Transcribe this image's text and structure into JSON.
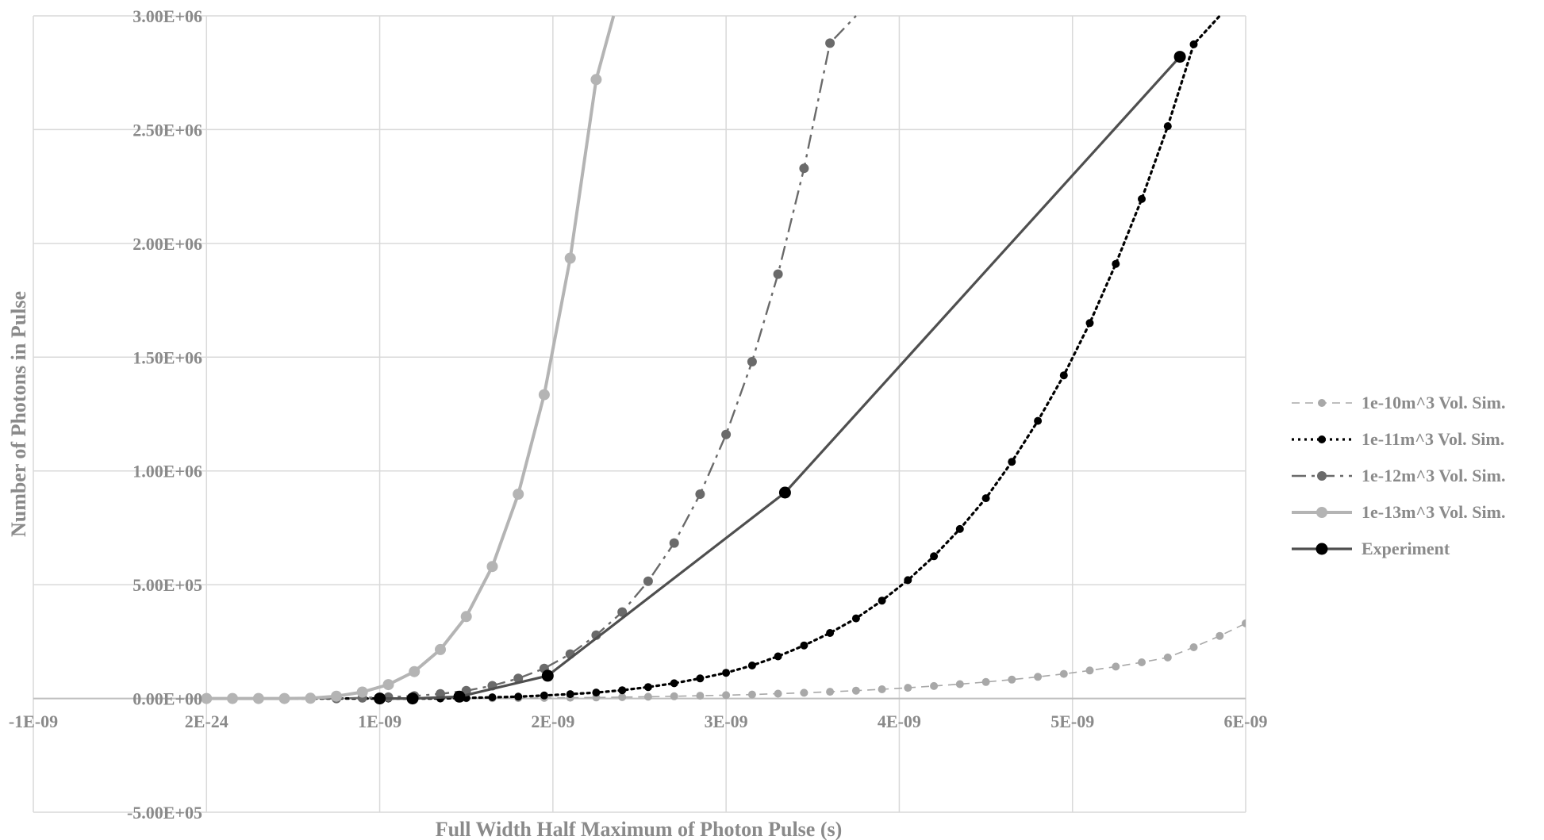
{
  "chart_data": {
    "type": "line",
    "title": "",
    "xlabel": "Full Width Half Maximum of Photon Pulse (s)",
    "ylabel": "Number of Photons in Pulse",
    "xlim": [
      -1e-09,
      6e-09
    ],
    "ylim": [
      -500000,
      3000000
    ],
    "x_ticks": [
      -1e-09,
      0,
      1e-09,
      2e-09,
      3e-09,
      4e-09,
      5e-09,
      6e-09
    ],
    "x_tick_labels": [
      "-1E-09",
      "2E-24",
      "1E-09",
      "2E-09",
      "3E-09",
      "4E-09",
      "5E-09",
      "6E-09"
    ],
    "y_ticks": [
      -500000,
      0,
      500000,
      1000000,
      1500000,
      2000000,
      2500000,
      3000000
    ],
    "y_tick_labels": [
      "-5.00E+05",
      "0.00E+00",
      "5.00E+05",
      "1.00E+06",
      "1.50E+06",
      "2.00E+06",
      "2.50E+06",
      "3.00E+06"
    ],
    "grid": true,
    "legend_position": "right",
    "series": [
      {
        "name": "1e-10m^3 Vol. Sim.",
        "color": "#a8a8a8",
        "dash": "10,7",
        "stroke_width": 1.6,
        "marker_radius": 5,
        "x": [
          0,
          1.5e-10,
          3e-10,
          4.5e-10,
          6e-10,
          7.5e-10,
          9e-10,
          1.05e-09,
          1.2e-09,
          1.35e-09,
          1.5e-09,
          1.65e-09,
          1.8e-09,
          1.95e-09,
          2.1e-09,
          2.25e-09,
          2.4e-09,
          2.55e-09,
          2.7e-09,
          2.85e-09,
          3e-09,
          3.15e-09,
          3.3e-09,
          3.45e-09,
          3.6e-09,
          3.75e-09,
          3.9e-09,
          4.05e-09,
          4.2e-09,
          4.35e-09,
          4.5e-09,
          4.65e-09,
          4.8e-09,
          4.95e-09,
          5.1e-09,
          5.25e-09,
          5.4e-09,
          5.55e-09,
          5.7e-09,
          5.85e-09,
          6e-09
        ],
        "y": [
          0,
          0,
          0,
          0,
          0,
          0,
          0,
          0,
          0,
          500,
          800,
          1200,
          1800,
          2500,
          3500,
          4500,
          6000,
          7500,
          9500,
          12000,
          14500,
          17500,
          21000,
          25000,
          29500,
          34500,
          40500,
          47000,
          54500,
          63000,
          72500,
          83000,
          95000,
          108000,
          123000,
          140000,
          159000,
          180000,
          225000,
          275000,
          330000
        ]
      },
      {
        "name": "1e-11m^3 Vol. Sim.",
        "color": "#000000",
        "dash": "3,5",
        "stroke_width": 3.2,
        "marker_radius": 5,
        "x": [
          0,
          1.5e-10,
          3e-10,
          4.5e-10,
          6e-10,
          7.5e-10,
          9e-10,
          1.05e-09,
          1.2e-09,
          1.35e-09,
          1.5e-09,
          1.65e-09,
          1.8e-09,
          1.95e-09,
          2.1e-09,
          2.25e-09,
          2.4e-09,
          2.55e-09,
          2.7e-09,
          2.85e-09,
          3e-09,
          3.15e-09,
          3.3e-09,
          3.45e-09,
          3.6e-09,
          3.75e-09,
          3.9e-09,
          4.05e-09,
          4.2e-09,
          4.35e-09,
          4.5e-09,
          4.65e-09,
          4.8e-09,
          4.95e-09,
          5.1e-09,
          5.25e-09,
          5.4e-09,
          5.55e-09,
          5.7e-09,
          5.85e-09
        ],
        "y": [
          0,
          0,
          0,
          0,
          0,
          0,
          0,
          0,
          0,
          0,
          2500,
          5000,
          8000,
          13000,
          19000,
          26000,
          36000,
          50000,
          67000,
          88000,
          113000,
          145000,
          185000,
          233000,
          288000,
          352000,
          430000,
          520000,
          625000,
          745000,
          880000,
          1040000,
          1220000,
          1420000,
          1650000,
          1910000,
          2195000,
          2515000,
          2875000,
          3000000
        ]
      },
      {
        "name": "1e-12m^3 Vol. Sim.",
        "color": "#6a6a6a",
        "dash": "18,7,4,7",
        "stroke_width": 2.4,
        "marker_radius": 6,
        "x": [
          0,
          1.5e-10,
          3e-10,
          4.5e-10,
          6e-10,
          7.5e-10,
          9e-10,
          1.05e-09,
          1.2e-09,
          1.35e-09,
          1.5e-09,
          1.65e-09,
          1.8e-09,
          1.95e-09,
          2.1e-09,
          2.25e-09,
          2.4e-09,
          2.55e-09,
          2.7e-09,
          2.85e-09,
          3e-09,
          3.15e-09,
          3.3e-09,
          3.45e-09,
          3.6e-09,
          3.75e-09
        ],
        "y": [
          0,
          0,
          0,
          0,
          0,
          0,
          3000,
          6000,
          11000,
          20000,
          34000,
          56000,
          88000,
          132000,
          195000,
          278000,
          380000,
          515000,
          683000,
          898000,
          1160000,
          1480000,
          1865000,
          2330000,
          2880000,
          3000000
        ]
      },
      {
        "name": "1e-13m^3 Vol. Sim.",
        "color": "#b4b4b4",
        "dash": "",
        "stroke_width": 4,
        "marker_radius": 7,
        "x": [
          0,
          1.5e-10,
          3e-10,
          4.5e-10,
          6e-10,
          7.5e-10,
          9e-10,
          1.05e-09,
          1.2e-09,
          1.35e-09,
          1.5e-09,
          1.65e-09,
          1.8e-09,
          1.95e-09,
          2.1e-09,
          2.25e-09,
          2.35e-09
        ],
        "y": [
          0,
          0,
          0,
          0,
          1000,
          10000,
          28000,
          61000,
          118000,
          215000,
          360000,
          580000,
          898000,
          1335000,
          1935000,
          2720000,
          3000000
        ]
      },
      {
        "name": "Experiment",
        "color": "#4f4f4f",
        "dash": "",
        "stroke_width": 3.2,
        "marker_radius": 7.5,
        "marker_color": "#000000",
        "x": [
          1e-09,
          1.19e-09,
          1.46e-09,
          1.97e-09,
          3.34e-09,
          5.62e-09
        ],
        "y": [
          0,
          0,
          8000,
          100000,
          905000,
          2820000
        ]
      }
    ]
  }
}
